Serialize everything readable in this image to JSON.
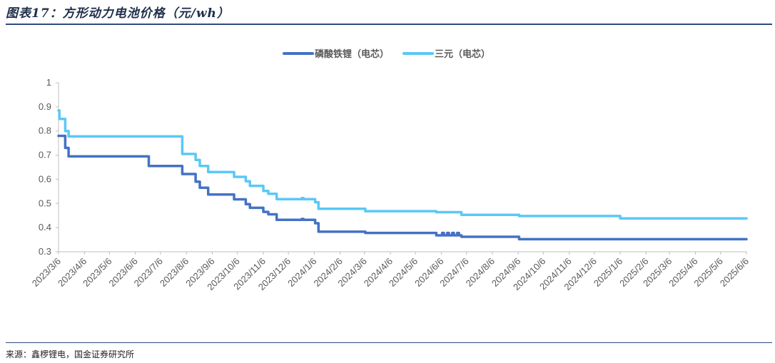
{
  "header": {
    "title": "图表17：方形动力电池价格（元/wh）"
  },
  "footer": {
    "source": "来源：鑫椤锂电，国金证券研究所"
  },
  "colors": {
    "lfp": "#4472c4",
    "ternary": "#5bc8f5",
    "axis": "#bfbfbf",
    "rule": "#2f4b7c"
  },
  "chart_data": {
    "type": "line",
    "title": "图表17：方形动力电池价格（元/wh）",
    "xlabel": "",
    "ylabel": "",
    "ylim": [
      0.3,
      1
    ],
    "yticks": [
      "0.3",
      "0.4",
      "0.5",
      "0.6",
      "0.7",
      "0.8",
      "0.9",
      "1"
    ],
    "xlim": [
      "2023/3/6",
      "2025/6/6"
    ],
    "xticks": [
      "2023/3/6",
      "2023/4/6",
      "2023/5/6",
      "2023/6/6",
      "2023/7/6",
      "2023/8/6",
      "2023/9/6",
      "2023/10/6",
      "2023/11/6",
      "2023/12/6",
      "2024/1/6",
      "2024/2/6",
      "2024/3/6",
      "2024/4/6",
      "2024/5/6",
      "2024/6/6",
      "2024/7/6",
      "2024/8/6",
      "2024/9/6",
      "2024/10/6",
      "2024/11/6",
      "2024/12/6",
      "2025/1/6",
      "2025/2/6",
      "2025/3/6",
      "2025/4/6",
      "2025/5/6",
      "2025/6/6"
    ],
    "legend_position": "top",
    "grid": false,
    "series": [
      {
        "name": "磷酸铁锂（电芯）",
        "color": "#4472c4",
        "step": true,
        "points": [
          [
            "2023/3/6",
            0.78
          ],
          [
            "2023/3/13",
            0.78
          ],
          [
            "2023/3/14",
            0.73
          ],
          [
            "2023/3/17",
            0.73
          ],
          [
            "2023/3/18",
            0.695
          ],
          [
            "2023/6/21",
            0.695
          ],
          [
            "2023/6/22",
            0.655
          ],
          [
            "2023/7/31",
            0.655
          ],
          [
            "2023/8/1",
            0.622
          ],
          [
            "2023/8/16",
            0.622
          ],
          [
            "2023/8/17",
            0.59
          ],
          [
            "2023/8/21",
            0.59
          ],
          [
            "2023/8/22",
            0.565
          ],
          [
            "2023/8/31",
            0.565
          ],
          [
            "2023/9/1",
            0.537
          ],
          [
            "2023/10/1",
            0.537
          ],
          [
            "2023/10/2",
            0.517
          ],
          [
            "2023/10/15",
            0.517
          ],
          [
            "2023/10/16",
            0.497
          ],
          [
            "2023/10/20",
            0.497
          ],
          [
            "2023/10/21",
            0.482
          ],
          [
            "2023/11/5",
            0.482
          ],
          [
            "2023/11/6",
            0.465
          ],
          [
            "2023/11/11",
            0.465
          ],
          [
            "2023/11/12",
            0.455
          ],
          [
            "2023/11/21",
            0.455
          ],
          [
            "2023/11/22",
            0.432
          ],
          [
            "2023/12/21",
            0.432
          ],
          [
            "2023/12/22",
            0.436
          ],
          [
            "2023/12/24",
            0.432
          ],
          [
            "2024/1/6",
            0.432
          ],
          [
            "2024/1/7",
            0.418
          ],
          [
            "2024/1/10",
            0.418
          ],
          [
            "2024/1/11",
            0.383
          ],
          [
            "2024/3/6",
            0.383
          ],
          [
            "2024/3/7",
            0.378
          ],
          [
            "2024/5/30",
            0.378
          ],
          [
            "2024/5/31",
            0.368
          ],
          [
            "2024/6/6",
            0.368
          ],
          [
            "2024/6/7",
            0.378
          ],
          [
            "2024/6/9",
            0.368
          ],
          [
            "2024/6/12",
            0.368
          ],
          [
            "2024/6/13",
            0.378
          ],
          [
            "2024/6/15",
            0.368
          ],
          [
            "2024/6/18",
            0.368
          ],
          [
            "2024/6/19",
            0.378
          ],
          [
            "2024/6/21",
            0.368
          ],
          [
            "2024/6/24",
            0.368
          ],
          [
            "2024/6/25",
            0.378
          ],
          [
            "2024/6/27",
            0.368
          ],
          [
            "2024/6/29",
            0.368
          ],
          [
            "2024/6/30",
            0.362
          ],
          [
            "2024/9/6",
            0.362
          ],
          [
            "2024/9/7",
            0.352
          ],
          [
            "2025/6/6",
            0.352
          ]
        ]
      },
      {
        "name": "三元（电芯）",
        "color": "#5bc8f5",
        "step": true,
        "points": [
          [
            "2023/3/6",
            0.885
          ],
          [
            "2023/3/7",
            0.85
          ],
          [
            "2023/3/13",
            0.85
          ],
          [
            "2023/3/14",
            0.8
          ],
          [
            "2023/3/17",
            0.8
          ],
          [
            "2023/3/18",
            0.778
          ],
          [
            "2023/7/31",
            0.778
          ],
          [
            "2023/8/1",
            0.705
          ],
          [
            "2023/8/16",
            0.705
          ],
          [
            "2023/8/17",
            0.68
          ],
          [
            "2023/8/21",
            0.68
          ],
          [
            "2023/8/22",
            0.655
          ],
          [
            "2023/8/31",
            0.655
          ],
          [
            "2023/9/1",
            0.63
          ],
          [
            "2023/10/1",
            0.63
          ],
          [
            "2023/10/2",
            0.61
          ],
          [
            "2023/10/15",
            0.61
          ],
          [
            "2023/10/16",
            0.592
          ],
          [
            "2023/10/20",
            0.592
          ],
          [
            "2023/10/21",
            0.573
          ],
          [
            "2023/11/5",
            0.573
          ],
          [
            "2023/11/6",
            0.552
          ],
          [
            "2023/11/11",
            0.552
          ],
          [
            "2023/11/12",
            0.54
          ],
          [
            "2023/11/21",
            0.54
          ],
          [
            "2023/11/22",
            0.518
          ],
          [
            "2023/12/21",
            0.518
          ],
          [
            "2023/12/22",
            0.522
          ],
          [
            "2023/12/24",
            0.518
          ],
          [
            "2024/1/6",
            0.518
          ],
          [
            "2024/1/7",
            0.505
          ],
          [
            "2024/1/10",
            0.505
          ],
          [
            "2024/1/11",
            0.478
          ],
          [
            "2024/3/6",
            0.478
          ],
          [
            "2024/3/7",
            0.468
          ],
          [
            "2024/5/30",
            0.468
          ],
          [
            "2024/5/31",
            0.464
          ],
          [
            "2024/6/29",
            0.464
          ],
          [
            "2024/6/30",
            0.453
          ],
          [
            "2024/9/6",
            0.453
          ],
          [
            "2024/9/7",
            0.448
          ],
          [
            "2025/1/5",
            0.448
          ],
          [
            "2025/1/6",
            0.438
          ],
          [
            "2025/6/6",
            0.438
          ]
        ]
      }
    ]
  }
}
